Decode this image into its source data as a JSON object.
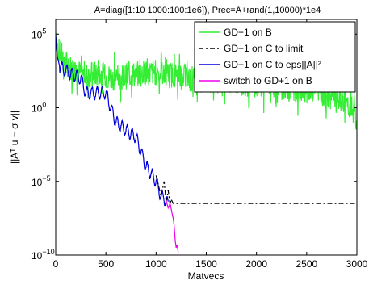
{
  "chart_data": {
    "type": "line",
    "title": "A=diag([1:10 1000:100:1e6]), Prec=A+rand(1,10000)*1e4",
    "xlabel": "Matvecs",
    "ylabel": "||Aᵀ u − σ v||",
    "xlim": [
      0,
      3000
    ],
    "ylim_log10": [
      -10,
      6
    ],
    "y_scale": "log",
    "grid": false,
    "legend_position": "top-right",
    "x_ticks": [
      0,
      500,
      1000,
      1500,
      2000,
      2500,
      3000
    ],
    "x_tick_labels": [
      "0",
      "500",
      "1000",
      "1500",
      "2000",
      "2500",
      "3000"
    ],
    "y_ticks_log10": [
      -10,
      -5,
      0,
      5
    ],
    "y_tick_labels": [
      {
        "base": "10",
        "exp": "−10"
      },
      {
        "base": "10",
        "exp": "−5"
      },
      {
        "base": "10",
        "exp": "0"
      },
      {
        "base": "10",
        "exp": "5"
      }
    ],
    "series": [
      {
        "name": "GD+1 on B",
        "color": "#33ee33",
        "dash": "solid",
        "style": "noisy",
        "noise_log10": 0.9,
        "x": [
          0,
          20,
          60,
          100,
          200,
          300,
          400,
          600,
          800,
          1000,
          1200,
          1400,
          1600,
          1800,
          2000,
          2200,
          2400,
          2600,
          2800,
          2900,
          3000
        ],
        "y_log10": [
          5.2,
          4.0,
          3.5,
          3.0,
          2.5,
          2.2,
          2.3,
          2.0,
          2.3,
          2.4,
          2.2,
          1.9,
          1.9,
          1.7,
          1.6,
          1.5,
          1.3,
          1.2,
          0.5,
          0.3,
          -0.5
        ]
      },
      {
        "name": "GD+1 on C to limit",
        "color": "#000000",
        "dash": "dashdot",
        "style": "smooth",
        "x": [
          1000,
          1050,
          1080,
          1100,
          1120,
          1140,
          1150,
          1170,
          1200,
          1400,
          2000,
          3000
        ],
        "y_log10": [
          -4.6,
          -6.0,
          -5.0,
          -6.4,
          -5.6,
          -6.6,
          -6.2,
          -6.5,
          -6.5,
          -6.5,
          -6.5,
          -6.5
        ]
      },
      {
        "name": "GD+1 on C to eps||A||²",
        "color": "#0000dd",
        "dash": "solid",
        "style": "oscillating",
        "osc_amp": 0.4,
        "osc_period": 50,
        "x": [
          0,
          15,
          40,
          80,
          150,
          250,
          300,
          400,
          500,
          600,
          700,
          800,
          900,
          1000,
          1050,
          1100,
          1120
        ],
        "y_log10": [
          5.0,
          3.5,
          2.8,
          2.6,
          2.3,
          2.0,
          1.0,
          1.0,
          1.0,
          -1.0,
          -1.5,
          -2.0,
          -4.0,
          -5.0,
          -6.0,
          -6.3,
          -6.6
        ]
      },
      {
        "name": "switch to GD+1 on B",
        "color": "#ee00ee",
        "dash": "solid",
        "style": "smooth",
        "x": [
          1100,
          1120,
          1140,
          1160,
          1170,
          1180,
          1190,
          1200,
          1210,
          1220
        ],
        "y_log10": [
          -6.3,
          -6.8,
          -6.5,
          -7.2,
          -7.5,
          -8.0,
          -9.0,
          -9.5,
          -9.3,
          -9.8
        ]
      }
    ]
  }
}
